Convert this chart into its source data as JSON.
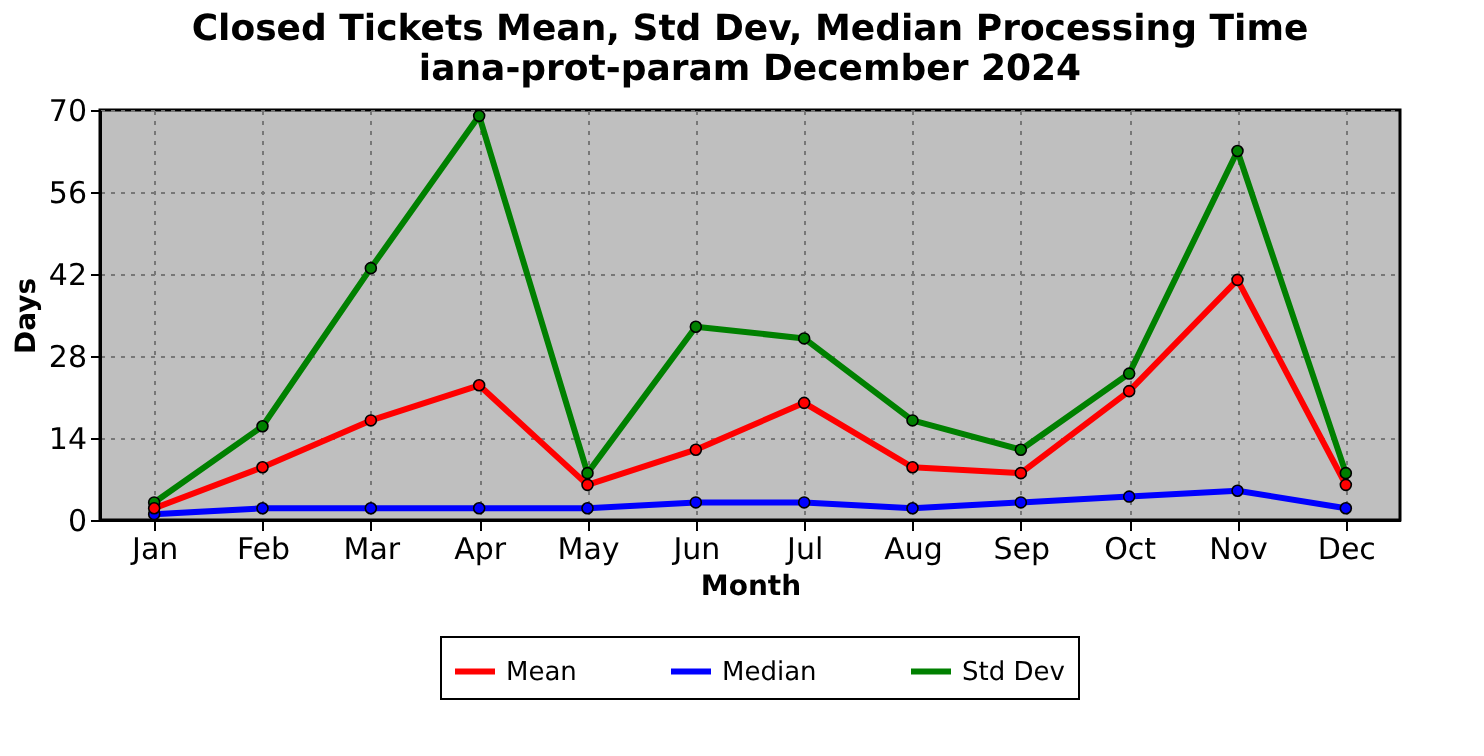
{
  "chart_data": {
    "type": "line",
    "title": "Closed Tickets Mean, Std Dev, Median Processing Time",
    "subtitle": "iana-prot-param December 2024",
    "xlabel": "Month",
    "ylabel": "Days",
    "categories": [
      "Jan",
      "Feb",
      "Mar",
      "Apr",
      "May",
      "Jun",
      "Jul",
      "Aug",
      "Sep",
      "Oct",
      "Nov",
      "Dec"
    ],
    "series": [
      {
        "name": "Mean",
        "color": "#ff0000",
        "values": [
          2,
          9,
          17,
          23,
          6,
          12,
          20,
          9,
          8,
          22,
          41,
          6
        ]
      },
      {
        "name": "Median",
        "color": "#0000ff",
        "values": [
          1,
          2,
          2,
          2,
          2,
          3,
          3,
          2,
          3,
          4,
          5,
          2
        ]
      },
      {
        "name": "Std Dev",
        "color": "#008000",
        "values": [
          3,
          16,
          43,
          69,
          8,
          33,
          31,
          17,
          12,
          25,
          63,
          8
        ]
      }
    ],
    "ylim": [
      0,
      70
    ],
    "yticks": [
      0,
      14,
      28,
      42,
      56,
      70
    ],
    "grid": true,
    "legend": "bottom",
    "marker": "circle",
    "line_style": "solid"
  }
}
